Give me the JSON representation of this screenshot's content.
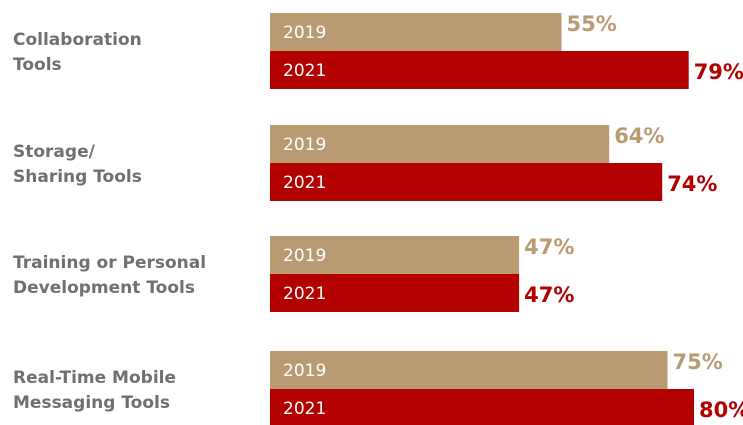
{
  "chart_data": {
    "type": "bar",
    "orientation": "horizontal",
    "categories": [
      [
        "Collaboration",
        "Tools"
      ],
      [
        "Storage/",
        "Sharing Tools"
      ],
      [
        "Training or Personal",
        "Development Tools"
      ],
      [
        "Real-Time Mobile",
        "Messaging Tools"
      ]
    ],
    "series": [
      {
        "name": "2019",
        "color": "#b89b72",
        "values": [
          55,
          64,
          47,
          75
        ],
        "value_labels": [
          "55%",
          "64%",
          "47%",
          "75%"
        ]
      },
      {
        "name": "2021",
        "color": "#b30000",
        "values": [
          79,
          74,
          47,
          80
        ],
        "value_labels": [
          "79%",
          "74%",
          "47%",
          "80%"
        ]
      }
    ],
    "xlim": [
      0,
      100
    ],
    "unit": "%",
    "grid": false,
    "legend": "none"
  }
}
